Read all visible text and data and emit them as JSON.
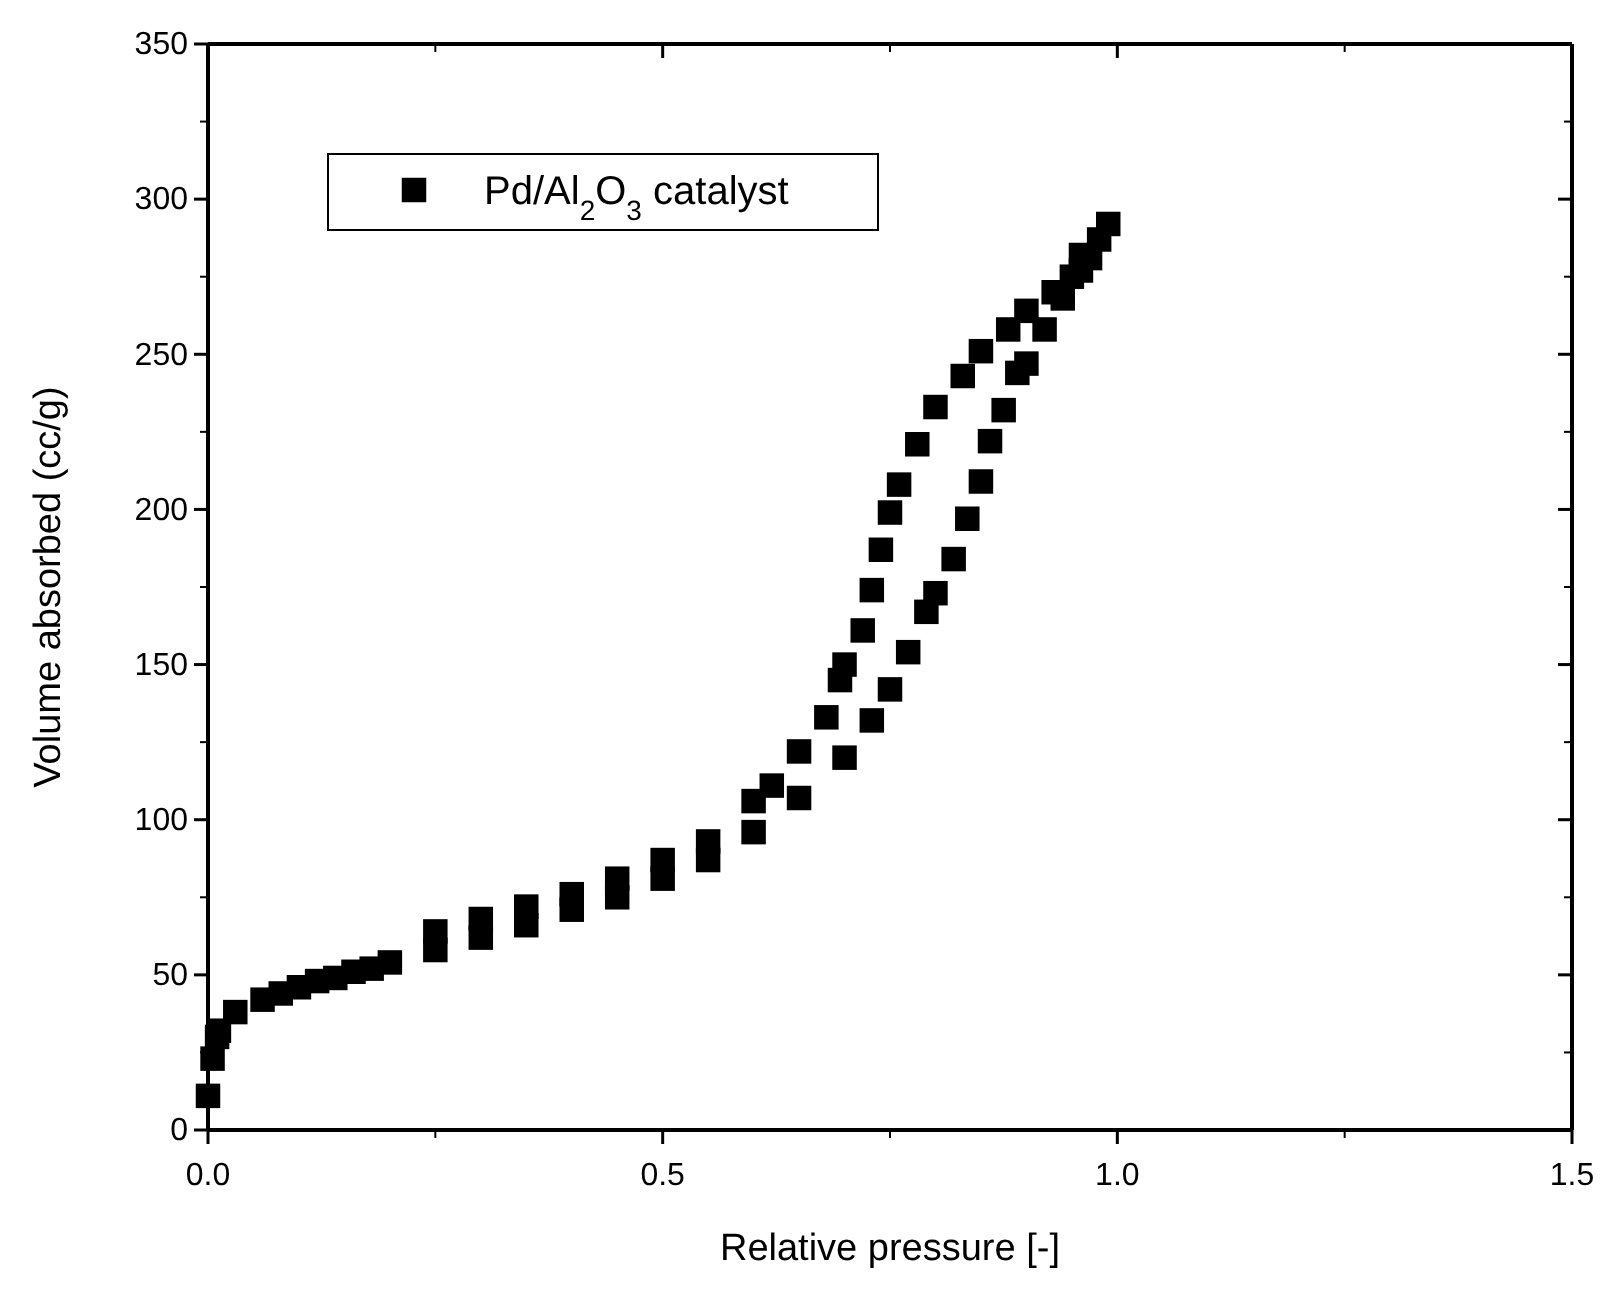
{
  "chart_data": {
    "type": "scatter",
    "xlabel": "Relative pressure [-]",
    "ylabel": "Volume absorbed (cc/g)",
    "xlim": [
      0,
      1.5
    ],
    "xticks": [
      {
        "value": 0,
        "label": "0.0"
      },
      0.5,
      {
        "value": 1,
        "label": "1.0"
      },
      1.5
    ],
    "ylim": [
      0,
      350
    ],
    "yticks": [
      0,
      50,
      100,
      150,
      200,
      250,
      300,
      350
    ],
    "grid": false,
    "legend": "top left",
    "marker": "square",
    "series": [
      {
        "name": "Pd/Al$_{2}$O$_{3}$ catalyst",
        "color": "#000000",
        "x": [
          0,
          0.005,
          0.01,
          0.012,
          0.03,
          0.06,
          0.08,
          0.1,
          0.12,
          0.14,
          0.16,
          0.18,
          0.2,
          0.25,
          0.3,
          0.35,
          0.4,
          0.45,
          0.5,
          0.55,
          0.6,
          0.65,
          0.7,
          0.73,
          0.75,
          0.77,
          0.79,
          0.8,
          0.82,
          0.835,
          0.85,
          0.86,
          0.875,
          0.89,
          0.9,
          0.92,
          0.94,
          0.96,
          0.97,
          0.99,
          0.98,
          0.96,
          0.95,
          0.93,
          0.9,
          0.88,
          0.85,
          0.83,
          0.8,
          0.78,
          0.76,
          0.75,
          0.74,
          0.73,
          0.72,
          0.7,
          0.695,
          0.68,
          0.65,
          0.62,
          0.6,
          0.55,
          0.5,
          0.45,
          0.4,
          0.35,
          0.3,
          0.25
        ],
        "values": [
          11,
          23,
          30,
          32,
          38,
          42,
          44,
          46,
          48,
          49,
          51,
          52,
          54,
          58,
          62,
          66,
          71,
          75,
          81,
          87,
          96,
          107,
          120,
          132,
          142,
          154,
          167,
          173,
          184,
          197,
          209,
          222,
          232,
          244,
          247,
          258,
          268,
          277,
          281,
          292,
          287,
          282,
          275,
          270,
          264,
          258,
          251,
          243,
          233,
          221,
          208,
          199,
          187,
          174,
          161,
          150,
          145,
          133,
          122,
          111,
          106,
          93,
          87,
          81,
          76,
          72,
          68,
          64
        ]
      }
    ]
  }
}
